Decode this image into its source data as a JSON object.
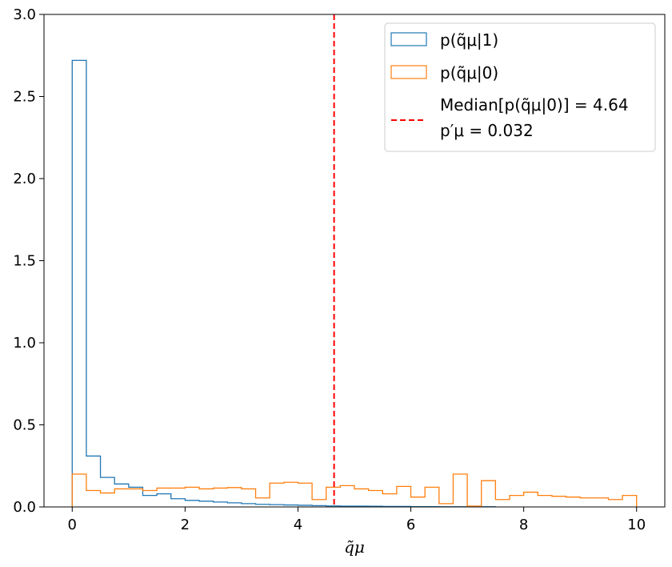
{
  "chart_data": {
    "type": "histogram",
    "xlabel": "q̃μ",
    "ylabel": "",
    "xlim": [
      -0.5,
      10.5
    ],
    "ylim": [
      0,
      3.0
    ],
    "xticks": [
      0,
      2,
      4,
      6,
      8,
      10
    ],
    "yticks": [
      0.0,
      0.5,
      1.0,
      1.5,
      2.0,
      2.5,
      3.0
    ],
    "ytick_labels": [
      "0.0",
      "0.5",
      "1.0",
      "1.5",
      "2.0",
      "2.5",
      "3.0"
    ],
    "xtick_labels": [
      "0",
      "2",
      "4",
      "6",
      "8",
      "10"
    ],
    "bin_width": 0.25,
    "grid": false,
    "legend_position": "top-right",
    "series": [
      {
        "name": "p(q̃μ|1)",
        "color": "#1f77b4",
        "bin_start": 0,
        "values": [
          2.72,
          0.31,
          0.18,
          0.14,
          0.12,
          0.07,
          0.08,
          0.05,
          0.04,
          0.035,
          0.03,
          0.025,
          0.02,
          0.016,
          0.014,
          0.012,
          0.01,
          0.008,
          0.006,
          0.005,
          0.005,
          0.004,
          0.003,
          0.003,
          0.002,
          0.002,
          0.001,
          0.001,
          0.001,
          0.001
        ]
      },
      {
        "name": "p(q̃μ|0)",
        "color": "#ff7f0e",
        "bin_start": 0,
        "values": [
          0.2,
          0.1,
          0.085,
          0.11,
          0.11,
          0.1,
          0.115,
          0.115,
          0.12,
          0.11,
          0.115,
          0.118,
          0.11,
          0.055,
          0.145,
          0.15,
          0.145,
          0.045,
          0.12,
          0.13,
          0.11,
          0.1,
          0.08,
          0.125,
          0.06,
          0.12,
          0.02,
          0.2,
          0.005,
          0.16,
          0.045,
          0.07,
          0.09,
          0.07,
          0.065,
          0.06,
          0.055,
          0.055,
          0.045,
          0.07
        ]
      }
    ],
    "median_line": {
      "x": 4.64,
      "color": "#ff0000",
      "label_line1": "Median[p(q̃μ|0)] = 4.64",
      "label_line2": "p′μ = 0.032"
    }
  }
}
